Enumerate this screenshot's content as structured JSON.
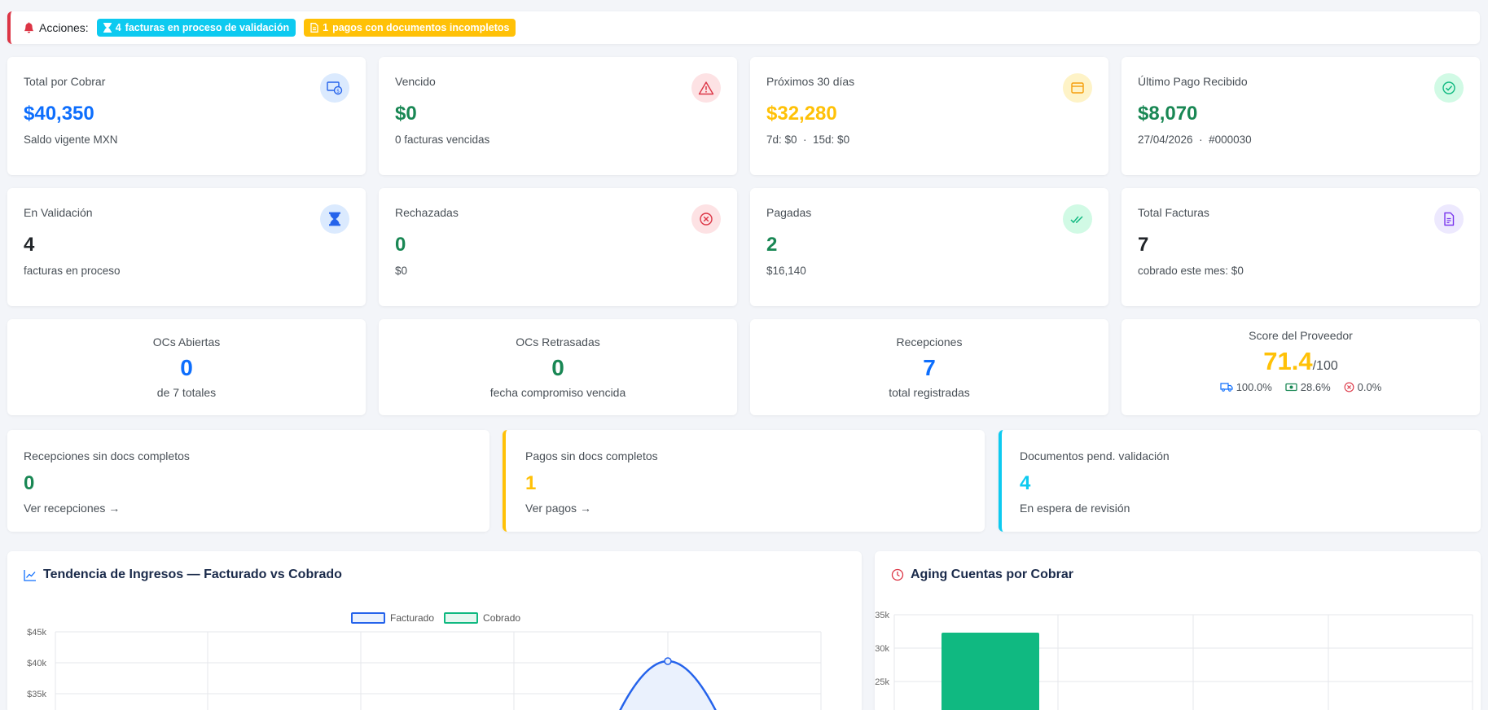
{
  "alert": {
    "label": "Acciones:",
    "badge_validation_count": "4",
    "badge_validation_text": "facturas en proceso de validación",
    "badge_payments_count": "1",
    "badge_payments_text": "pagos con documentos incompletos"
  },
  "kpis": {
    "total": {
      "title": "Total por Cobrar",
      "value": "$40,350",
      "sub": "Saldo vigente MXN"
    },
    "vencido": {
      "title": "Vencido",
      "value": "$0",
      "sub": "0 facturas vencidas"
    },
    "proximos": {
      "title": "Próximos 30 días",
      "value": "$32,280",
      "sub": "7d: $0  ·  15d: $0"
    },
    "ultimo": {
      "title": "Último Pago Recibido",
      "value": "$8,070",
      "sub": "27/04/2026  ·  #000030"
    },
    "validacion": {
      "title": "En Validación",
      "value": "4",
      "sub": "facturas en proceso"
    },
    "rechazadas": {
      "title": "Rechazadas",
      "value": "0",
      "sub": "$0"
    },
    "pagadas": {
      "title": "Pagadas",
      "value": "2",
      "sub": "$16,140"
    },
    "facturas": {
      "title": "Total Facturas",
      "value": "7",
      "sub": "cobrado este mes: $0"
    }
  },
  "center": {
    "abiertas": {
      "title": "OCs Abiertas",
      "value": "0",
      "sub": "de 7 totales"
    },
    "retrasadas": {
      "title": "OCs Retrasadas",
      "value": "0",
      "sub": "fecha compromiso vencida"
    },
    "recepciones": {
      "title": "Recepciones",
      "value": "7",
      "sub": "total registradas"
    },
    "score": {
      "title": "Score del Proveedor",
      "value": "71.4",
      "max": "/100",
      "m1": "100.0%",
      "m2": "28.6%",
      "m3": "0.0%"
    }
  },
  "docs": {
    "recep": {
      "title": "Recepciones sin docs completos",
      "value": "0",
      "link": "Ver recepciones →"
    },
    "pagos": {
      "title": "Pagos sin docs completos",
      "value": "1",
      "link": "Ver pagos →"
    },
    "pend": {
      "title": "Documentos pend. validación",
      "value": "4",
      "sub": "En espera de revisión"
    }
  },
  "colors": {
    "blue": "#0d6efd",
    "green": "#198754",
    "amber": "#ffc107",
    "cyan": "#0dcaf0",
    "red": "#dc3545",
    "bar": "#10b981"
  },
  "trend": {
    "title": "Tendencia de Ingresos — Facturado vs Cobrado",
    "legend": [
      "Facturado",
      "Cobrado"
    ],
    "chart_data": {
      "type": "line",
      "series": [
        {
          "name": "Facturado",
          "peak": 40350
        },
        {
          "name": "Cobrado"
        }
      ],
      "yticks": [
        "$45k",
        "$40k",
        "$35k"
      ]
    }
  },
  "aging": {
    "title": "Aging Cuentas por Cobrar",
    "chart_data": {
      "type": "bar",
      "values": [
        32280
      ],
      "yticks": [
        "$35k",
        "$30k",
        "$25k"
      ]
    }
  }
}
